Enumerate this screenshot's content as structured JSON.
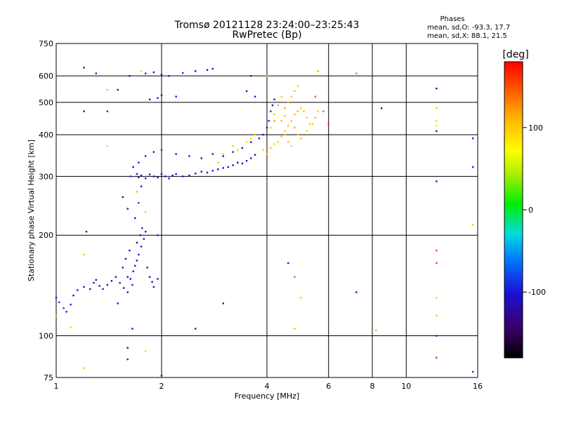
{
  "chart_data": {
    "type": "scatter",
    "title": "Tromsø 20121128 23:24:00–23:25:43",
    "subtitle": "RwPretec (Bp)",
    "xlabel": "Frequency [MHz]",
    "ylabel": "Stationary phase Virtual Height [km]",
    "x_scale": "log",
    "y_scale": "log",
    "xlim": [
      1,
      16
    ],
    "ylim": [
      75,
      750
    ],
    "x_ticks": [
      1,
      2,
      4,
      6,
      8,
      10,
      16
    ],
    "x_tick_labels": [
      "1",
      "2",
      "4",
      "6",
      "8",
      "10",
      "16"
    ],
    "y_ticks": [
      75,
      100,
      200,
      300,
      400,
      500,
      600,
      750
    ],
    "y_tick_labels": [
      "75",
      "100",
      "200",
      "300",
      "400",
      "500",
      "600",
      "750"
    ],
    "grid": true,
    "legend": {
      "header": "Phases",
      "line1": "mean, sd,O:  -93.3, 17.7",
      "line2": "mean, sd,X:  88.1, 21.5"
    },
    "colorbar": {
      "label": "[deg]",
      "range": [
        -180,
        180
      ],
      "ticks": [
        100,
        0,
        -100
      ],
      "tick_labels": [
        "100",
        "0",
        "-100"
      ]
    },
    "series": [
      {
        "mode": "O",
        "points": [
          [
            1.0,
            130,
            -100
          ],
          [
            1.02,
            126,
            -90
          ],
          [
            1.05,
            121,
            -80
          ],
          [
            1.07,
            118,
            -100
          ],
          [
            1.1,
            124,
            -95
          ],
          [
            1.12,
            132,
            -110
          ],
          [
            1.15,
            137,
            -100
          ],
          [
            1.2,
            140,
            -105
          ],
          [
            1.25,
            138,
            -95
          ],
          [
            1.28,
            144,
            -100
          ],
          [
            1.3,
            147,
            -110
          ],
          [
            1.33,
            141,
            -100
          ],
          [
            1.36,
            138,
            -95
          ],
          [
            1.4,
            142,
            -110
          ],
          [
            1.44,
            146,
            -100
          ],
          [
            1.48,
            150,
            -105
          ],
          [
            1.52,
            144,
            -95
          ],
          [
            1.56,
            139,
            -100
          ],
          [
            1.6,
            135,
            -110
          ],
          [
            1.63,
            148,
            -100
          ],
          [
            1.66,
            156,
            -100
          ],
          [
            1.68,
            162,
            -110
          ],
          [
            1.7,
            168,
            -105
          ],
          [
            1.72,
            175,
            -95
          ],
          [
            1.75,
            185,
            -100
          ],
          [
            1.78,
            195,
            -110
          ],
          [
            1.8,
            205,
            -100
          ],
          [
            1.82,
            160,
            -115
          ],
          [
            1.85,
            150,
            -100
          ],
          [
            1.88,
            145,
            -110
          ],
          [
            1.9,
            140,
            -105
          ],
          [
            1.95,
            148,
            -100
          ],
          [
            1.65,
            142,
            -95
          ],
          [
            1.6,
            150,
            -100
          ],
          [
            1.55,
            160,
            -110
          ],
          [
            1.58,
            170,
            -115
          ],
          [
            1.62,
            180,
            -100
          ],
          [
            1.7,
            190,
            -120
          ],
          [
            1.74,
            200,
            -100
          ],
          [
            1.76,
            210,
            -90
          ],
          [
            1.68,
            225,
            -100
          ],
          [
            1.72,
            250,
            -85
          ],
          [
            1.75,
            280,
            -100
          ],
          [
            1.63,
            300,
            -80
          ],
          [
            1.66,
            320,
            -100
          ],
          [
            1.7,
            305,
            -110
          ],
          [
            1.72,
            298,
            -100
          ],
          [
            1.75,
            302,
            -105
          ],
          [
            1.8,
            296,
            -95
          ],
          [
            1.85,
            304,
            -100
          ],
          [
            1.9,
            300,
            -110
          ],
          [
            1.95,
            298,
            -100
          ],
          [
            2.0,
            305,
            -105
          ],
          [
            2.05,
            300,
            -95
          ],
          [
            2.1,
            296,
            -100
          ],
          [
            2.15,
            302,
            -110
          ],
          [
            2.2,
            305,
            -100
          ],
          [
            2.3,
            300,
            -100
          ],
          [
            2.4,
            302,
            -110
          ],
          [
            2.5,
            306,
            -100
          ],
          [
            2.6,
            310,
            -105
          ],
          [
            2.7,
            308,
            -95
          ],
          [
            2.8,
            312,
            -100
          ],
          [
            2.9,
            315,
            -110
          ],
          [
            3.0,
            318,
            -100
          ],
          [
            3.1,
            320,
            -105
          ],
          [
            3.2,
            324,
            -115
          ],
          [
            3.3,
            330,
            -120
          ],
          [
            3.4,
            328,
            -110
          ],
          [
            3.5,
            334,
            -100
          ],
          [
            3.6,
            340,
            -115
          ],
          [
            3.7,
            348,
            -110
          ],
          [
            1.72,
            330,
            -100
          ],
          [
            1.8,
            345,
            -95
          ],
          [
            1.9,
            355,
            -100
          ],
          [
            2.0,
            360,
            -90
          ],
          [
            2.2,
            350,
            -100
          ],
          [
            2.4,
            345,
            -95
          ],
          [
            2.6,
            340,
            -100
          ],
          [
            2.8,
            350,
            -110
          ],
          [
            3.0,
            345,
            -100
          ],
          [
            3.2,
            355,
            -105
          ],
          [
            3.4,
            365,
            -110
          ],
          [
            3.6,
            380,
            -100
          ],
          [
            3.8,
            390,
            -115
          ],
          [
            3.9,
            400,
            -110
          ],
          [
            4.0,
            420,
            -100
          ],
          [
            4.05,
            440,
            -95
          ],
          [
            4.1,
            470,
            -90
          ],
          [
            4.15,
            490,
            -100
          ],
          [
            4.2,
            510,
            -105
          ],
          [
            3.7,
            520,
            -110
          ],
          [
            3.5,
            540,
            -100
          ],
          [
            3.6,
            600,
            -105
          ],
          [
            1.62,
            600,
            -100
          ],
          [
            1.8,
            610,
            -95
          ],
          [
            1.9,
            615,
            -100
          ],
          [
            2.0,
            605,
            -110
          ],
          [
            2.1,
            600,
            -100
          ],
          [
            2.3,
            612,
            -90
          ],
          [
            2.5,
            620,
            -100
          ],
          [
            2.7,
            625,
            -105
          ],
          [
            2.8,
            630,
            -95
          ],
          [
            2.2,
            520,
            -100
          ],
          [
            2.0,
            525,
            -110
          ],
          [
            1.95,
            515,
            -100
          ],
          [
            1.85,
            510,
            -105
          ],
          [
            1.2,
            635,
            -100
          ],
          [
            1.3,
            610,
            -90
          ],
          [
            1.5,
            545,
            -100
          ],
          [
            1.4,
            470,
            -95
          ],
          [
            1.2,
            470,
            -100
          ],
          [
            1.6,
            240,
            -105
          ],
          [
            1.55,
            260,
            -100
          ],
          [
            1.22,
            205,
            -100
          ],
          [
            1.95,
            200,
            -95
          ],
          [
            1.5,
            125,
            -100
          ],
          [
            1.65,
            105,
            -110
          ],
          [
            2.5,
            105,
            -100
          ],
          [
            3.0,
            125,
            -110
          ],
          [
            4.6,
            165,
            -100
          ],
          [
            7.2,
            135,
            -100
          ],
          [
            8.5,
            480,
            -110
          ],
          [
            12.2,
            550,
            -120
          ],
          [
            12.2,
            410,
            -110
          ],
          [
            12.2,
            290,
            -100
          ],
          [
            12.2,
            100,
            -95
          ],
          [
            15.5,
            390,
            -100
          ],
          [
            15.5,
            320,
            -95
          ],
          [
            15.5,
            78,
            -90
          ],
          [
            1.6,
            92,
            -105
          ],
          [
            1.6,
            85,
            -95
          ],
          [
            2.0,
            76,
            -100
          ]
        ]
      },
      {
        "mode": "X",
        "points": [
          [
            3.9,
            360,
            100
          ],
          [
            4.0,
            350,
            110
          ],
          [
            4.1,
            365,
            105
          ],
          [
            4.2,
            375,
            95
          ],
          [
            4.3,
            380,
            100
          ],
          [
            4.4,
            395,
            110
          ],
          [
            4.5,
            410,
            100
          ],
          [
            4.6,
            425,
            105
          ],
          [
            4.7,
            440,
            95
          ],
          [
            4.8,
            460,
            100
          ],
          [
            4.9,
            470,
            110
          ],
          [
            5.0,
            480,
            100
          ],
          [
            5.1,
            470,
            105
          ],
          [
            5.2,
            450,
            95
          ],
          [
            5.3,
            430,
            100
          ],
          [
            4.5,
            480,
            120
          ],
          [
            4.6,
            500,
            110
          ],
          [
            4.7,
            520,
            100
          ],
          [
            4.8,
            540,
            105
          ],
          [
            4.9,
            560,
            95
          ],
          [
            4.4,
            520,
            100
          ],
          [
            4.3,
            490,
            110
          ],
          [
            4.2,
            460,
            100
          ],
          [
            4.4,
            440,
            105
          ],
          [
            4.5,
            455,
            100
          ],
          [
            4.8,
            420,
            110
          ],
          [
            4.9,
            400,
            100
          ],
          [
            5.0,
            390,
            105
          ],
          [
            5.2,
            410,
            95
          ],
          [
            5.4,
            430,
            100
          ],
          [
            5.5,
            450,
            110
          ],
          [
            5.6,
            470,
            100
          ],
          [
            4.6,
            380,
            105
          ],
          [
            4.7,
            370,
            95
          ],
          [
            4.5,
            400,
            100
          ],
          [
            4.1,
            420,
            100
          ],
          [
            4.2,
            440,
            110
          ],
          [
            3.6,
            390,
            100
          ],
          [
            3.7,
            400,
            105
          ],
          [
            3.3,
            360,
            95
          ],
          [
            3.5,
            380,
            90
          ],
          [
            3.2,
            370,
            100
          ],
          [
            3.0,
            350,
            95
          ],
          [
            2.9,
            330,
            100
          ],
          [
            5.6,
            620,
            120
          ],
          [
            7.2,
            610,
            130
          ],
          [
            5.8,
            470,
            140
          ],
          [
            5.5,
            520,
            150
          ],
          [
            6.0,
            430,
            160
          ],
          [
            4.0,
            600,
            100
          ],
          [
            1.4,
            545,
            100
          ],
          [
            1.4,
            370,
            95
          ],
          [
            1.75,
            620,
            100
          ],
          [
            1.7,
            270,
            110
          ],
          [
            1.8,
            235,
            100
          ],
          [
            1.2,
            175,
            100
          ],
          [
            1.2,
            80,
            100
          ],
          [
            1.8,
            90,
            95
          ],
          [
            1.0,
            115,
            110
          ],
          [
            1.1,
            106,
            100
          ],
          [
            12.2,
            480,
            100
          ],
          [
            12.2,
            440,
            95
          ],
          [
            12.2,
            425,
            60
          ],
          [
            15.5,
            215,
            100
          ],
          [
            8.2,
            104,
            110
          ],
          [
            4.8,
            150,
            140
          ],
          [
            12.2,
            180,
            150
          ],
          [
            12.2,
            165,
            160
          ],
          [
            12.2,
            130,
            95
          ],
          [
            12.2,
            115,
            100
          ],
          [
            5.0,
            130,
            100
          ],
          [
            12.2,
            86,
            170
          ],
          [
            4.8,
            105,
            40
          ]
        ]
      }
    ]
  }
}
